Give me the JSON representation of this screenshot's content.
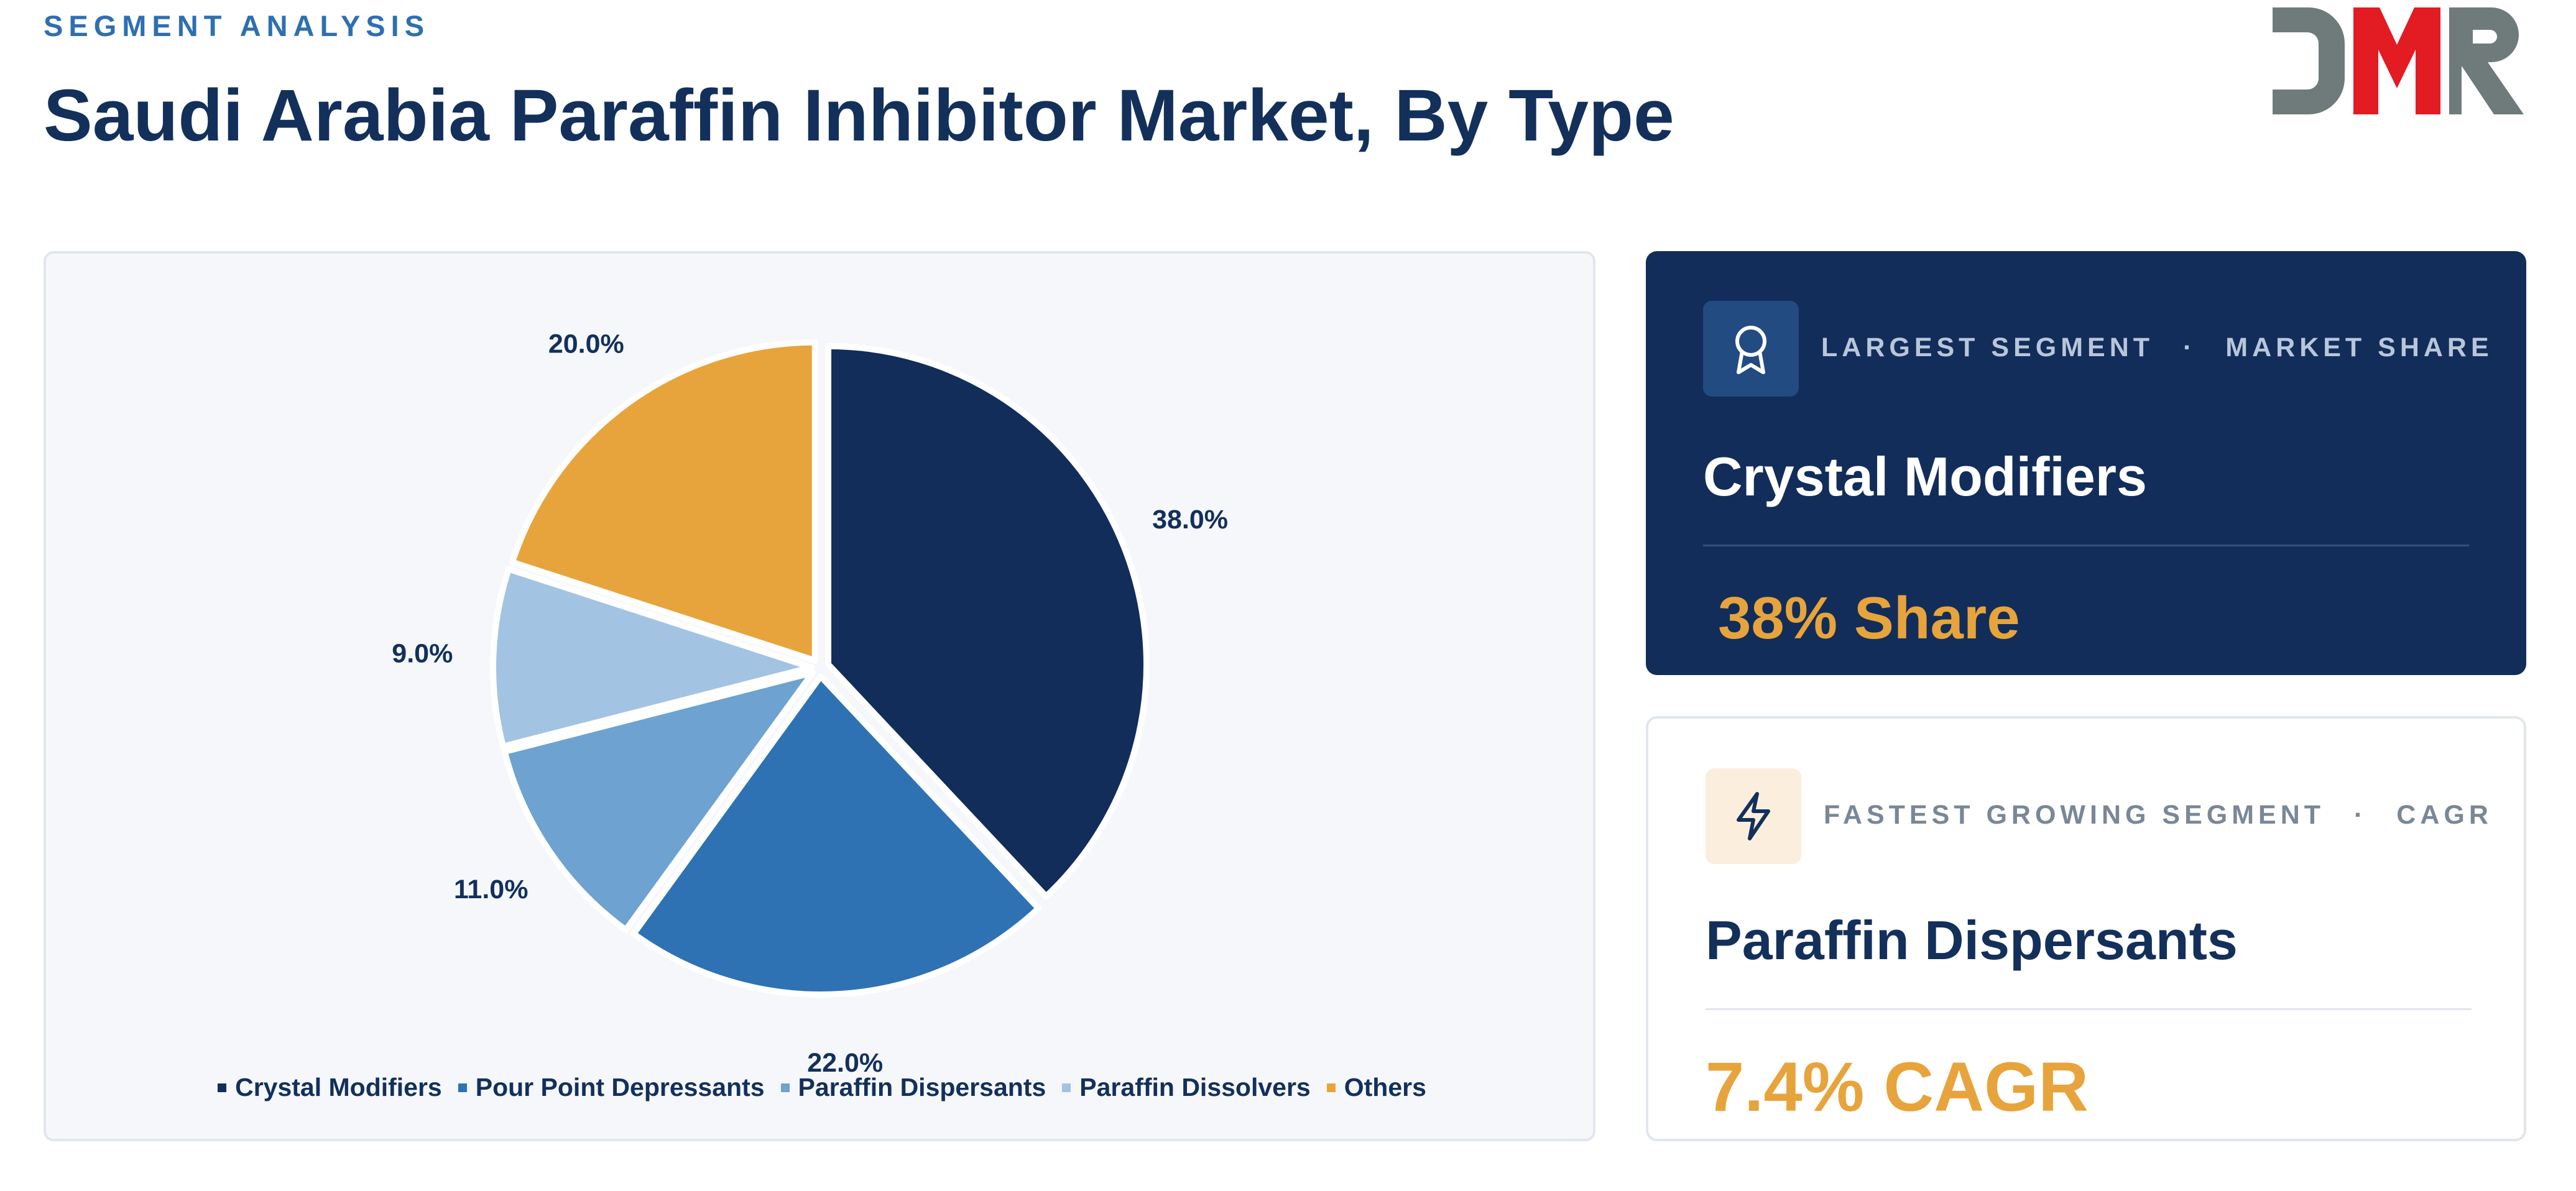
{
  "header": {
    "eyebrow": "SEGMENT ANALYSIS",
    "title": "Saudi Arabia Paraffin Inhibitor Market, By Type"
  },
  "logo": {
    "text": "DMR",
    "colors": {
      "gray": "#6f7b7b",
      "red": "#e31b23"
    }
  },
  "chart_data": {
    "type": "pie",
    "start_angle_deg": 0,
    "direction": "clockwise",
    "slices": [
      {
        "label": "Crystal Modifiers",
        "value": 38.0,
        "value_label": "38.0%",
        "color": "#122d5a"
      },
      {
        "label": "Pour Point Depressants",
        "value": 22.0,
        "value_label": "22.0%",
        "color": "#2e72b3"
      },
      {
        "label": "Paraffin Dispersants",
        "value": 11.0,
        "value_label": "11.0%",
        "color": "#6ea2d0"
      },
      {
        "label": "Paraffin Dissolvers",
        "value": 9.0,
        "value_label": "9.0%",
        "color": "#a3c3e3"
      },
      {
        "label": "Others",
        "value": 20.0,
        "value_label": "20.0%",
        "color": "#e7a43c"
      }
    ],
    "legend_position": "bottom"
  },
  "largest": {
    "label_a": "LARGEST SEGMENT",
    "separator": "·",
    "label_b": "MARKET SHARE",
    "name": "Crystal Modifiers",
    "value": "38% Share",
    "icon": "award-icon"
  },
  "fastest": {
    "label_a": "FASTEST GROWING SEGMENT",
    "separator": "·",
    "label_b": "CAGR",
    "name": "Paraffin Dispersants",
    "value": "7.4% CAGR",
    "icon": "lightning-icon"
  },
  "colors": {
    "navy": "#122d5a",
    "accent": "#e7a43c",
    "blue": "#2f6fb0"
  }
}
